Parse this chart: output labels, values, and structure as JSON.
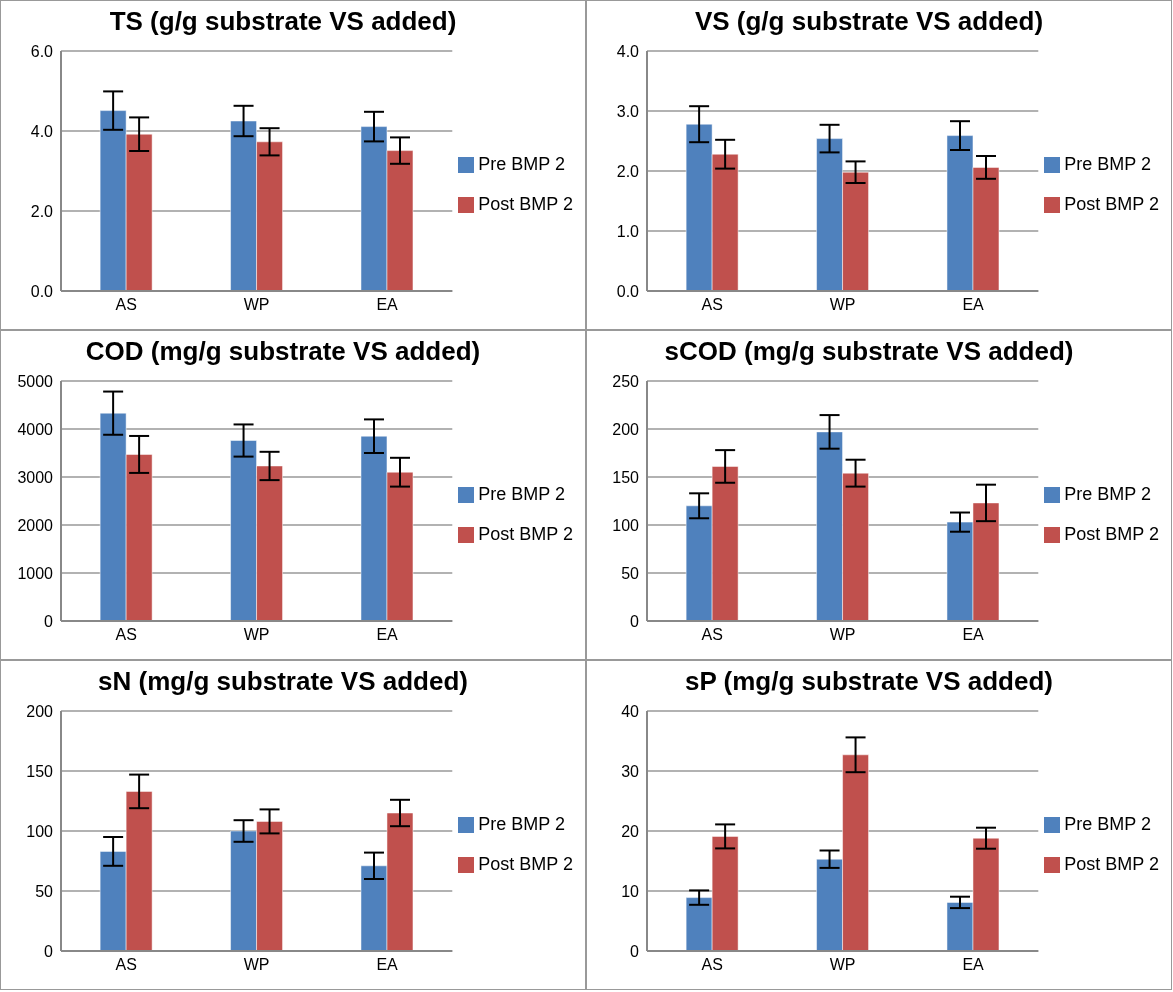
{
  "chart_data": [
    {
      "type": "bar",
      "title": "TS (g/g substrate VS added)",
      "categories": [
        "AS",
        "WP",
        "EA"
      ],
      "ylim": [
        0,
        6
      ],
      "yticks": [
        {
          "value": 0,
          "label": "0.0"
        },
        {
          "value": 2,
          "label": "2.0"
        },
        {
          "value": 4,
          "label": "4.0"
        },
        {
          "value": 6,
          "label": "6.0"
        }
      ],
      "grid": "y",
      "legend": "right",
      "series": [
        {
          "name": "Pre BMP 2",
          "color": "#4f81bd",
          "values": [
            4.51,
            4.25,
            4.11
          ],
          "errors": [
            0.48,
            0.38,
            0.37
          ]
        },
        {
          "name": "Post BMP 2",
          "color": "#c0504d",
          "values": [
            3.92,
            3.73,
            3.51
          ],
          "errors": [
            0.42,
            0.34,
            0.33
          ]
        }
      ]
    },
    {
      "type": "bar",
      "title": "VS (g/g substrate VS added)",
      "categories": [
        "AS",
        "WP",
        "EA"
      ],
      "ylim": [
        0,
        4
      ],
      "yticks": [
        {
          "value": 0,
          "label": "0.0"
        },
        {
          "value": 1,
          "label": "1.0"
        },
        {
          "value": 2,
          "label": "2.0"
        },
        {
          "value": 3,
          "label": "3.0"
        },
        {
          "value": 4,
          "label": "4.0"
        }
      ],
      "grid": "y",
      "legend": "right",
      "series": [
        {
          "name": "Pre BMP 2",
          "color": "#4f81bd",
          "values": [
            2.78,
            2.54,
            2.59
          ],
          "errors": [
            0.3,
            0.23,
            0.24
          ]
        },
        {
          "name": "Post BMP 2",
          "color": "#c0504d",
          "values": [
            2.28,
            1.98,
            2.06
          ],
          "errors": [
            0.24,
            0.18,
            0.19
          ]
        }
      ]
    },
    {
      "type": "bar",
      "title": "COD (mg/g substrate VS added)",
      "categories": [
        "AS",
        "WP",
        "EA"
      ],
      "ylim": [
        0,
        5000
      ],
      "yticks": [
        0,
        1000,
        2000,
        3000,
        4000,
        5000
      ],
      "grid": "y",
      "legend": "right",
      "series": [
        {
          "name": "Pre BMP 2",
          "color": "#4f81bd",
          "values": [
            4330,
            3760,
            3850
          ],
          "errors": [
            450,
            335,
            350
          ]
        },
        {
          "name": "Post BMP 2",
          "color": "#c0504d",
          "values": [
            3470,
            3230,
            3100
          ],
          "errors": [
            385,
            295,
            300
          ]
        }
      ]
    },
    {
      "type": "bar",
      "title": "sCOD (mg/g substrate VS added)",
      "categories": [
        "AS",
        "WP",
        "EA"
      ],
      "ylim": [
        0,
        250
      ],
      "yticks": [
        0,
        50,
        100,
        150,
        200,
        250
      ],
      "grid": "y",
      "legend": "right",
      "series": [
        {
          "name": "Pre BMP 2",
          "color": "#4f81bd",
          "values": [
            120,
            197,
            103
          ],
          "errors": [
            13,
            17.5,
            10
          ]
        },
        {
          "name": "Post BMP 2",
          "color": "#c0504d",
          "values": [
            161,
            154,
            123
          ],
          "errors": [
            17,
            14,
            19
          ]
        }
      ]
    },
    {
      "type": "bar",
      "title": "sN (mg/g substrate VS added)",
      "categories": [
        "AS",
        "WP",
        "EA"
      ],
      "ylim": [
        0,
        200
      ],
      "yticks": [
        0,
        50,
        100,
        150,
        200
      ],
      "grid": "y",
      "legend": "right",
      "series": [
        {
          "name": "Pre BMP 2",
          "color": "#4f81bd",
          "values": [
            83,
            100,
            71
          ],
          "errors": [
            12,
            9,
            11
          ]
        },
        {
          "name": "Post BMP 2",
          "color": "#c0504d",
          "values": [
            133,
            108,
            115
          ],
          "errors": [
            14,
            10,
            11
          ]
        }
      ]
    },
    {
      "type": "bar",
      "title": "sP (mg/g substrate VS added)",
      "categories": [
        "AS",
        "WP",
        "EA"
      ],
      "ylim": [
        0,
        40
      ],
      "yticks": [
        0,
        10,
        20,
        30,
        40
      ],
      "grid": "y",
      "legend": "right",
      "series": [
        {
          "name": "Pre BMP 2",
          "color": "#4f81bd",
          "values": [
            8.9,
            15.3,
            8.1
          ],
          "errors": [
            1.2,
            1.45,
            0.95
          ]
        },
        {
          "name": "Post BMP 2",
          "color": "#c0504d",
          "values": [
            19.1,
            32.7,
            18.8
          ],
          "errors": [
            2,
            2.9,
            1.75
          ]
        }
      ]
    }
  ]
}
